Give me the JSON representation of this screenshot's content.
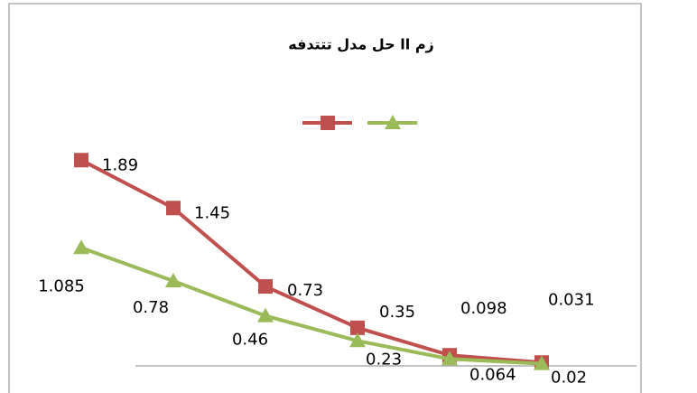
{
  "chart_data": {
    "type": "line",
    "title": "زم اا حل مدل   تتتدفه",
    "categories": [
      null,
      null,
      null,
      null,
      null,
      null
    ],
    "series": [
      {
        "color": "#c0504d",
        "marker": "square",
        "values": [
          1.89,
          1.45,
          0.73,
          0.35,
          0.098,
          0.031
        ]
      },
      {
        "color": "#9bbb59",
        "marker": "triangle",
        "values": [
          1.085,
          0.78,
          0.46,
          0.23,
          0.064,
          0.02
        ]
      }
    ],
    "ylim": [
      0,
      2
    ],
    "grid": false
  }
}
